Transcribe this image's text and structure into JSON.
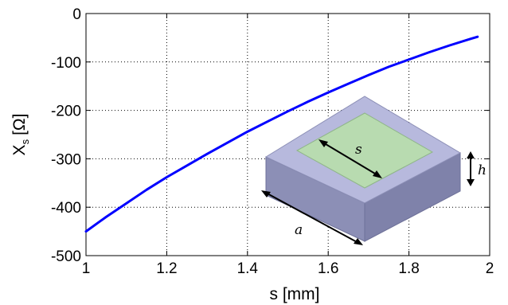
{
  "chart_data": {
    "type": "line",
    "title": "",
    "xlabel": "s [mm]",
    "ylabel_main": "X",
    "ylabel_sub": "s",
    "ylabel_unit": "[Ω]",
    "xlim": [
      1,
      2
    ],
    "ylim": [
      -500,
      0
    ],
    "xticks": [
      1,
      1.2,
      1.4,
      1.6,
      1.8,
      2
    ],
    "xtick_labels": [
      "1",
      "1.2",
      "1.4",
      "1.6",
      "1.8",
      "2"
    ],
    "yticks": [
      -500,
      -400,
      -300,
      -200,
      -100,
      0
    ],
    "ytick_labels": [
      "-500",
      "-400",
      "-300",
      "-200",
      "-100",
      "0"
    ],
    "grid": true,
    "series": [
      {
        "color": "#0000ff",
        "x": [
          1.0,
          1.05,
          1.1,
          1.15,
          1.2,
          1.25,
          1.3,
          1.35,
          1.4,
          1.45,
          1.5,
          1.55,
          1.6,
          1.65,
          1.7,
          1.75,
          1.8,
          1.85,
          1.9,
          1.95,
          1.97
        ],
        "y": [
          -450,
          -420,
          -392,
          -364,
          -338,
          -314,
          -290,
          -267,
          -244,
          -223,
          -202,
          -182,
          -163,
          -145,
          -127,
          -110,
          -95,
          -80,
          -66,
          -53,
          -48
        ]
      }
    ]
  },
  "inset": {
    "label_s": "s",
    "label_h": "h",
    "label_a": "a"
  }
}
